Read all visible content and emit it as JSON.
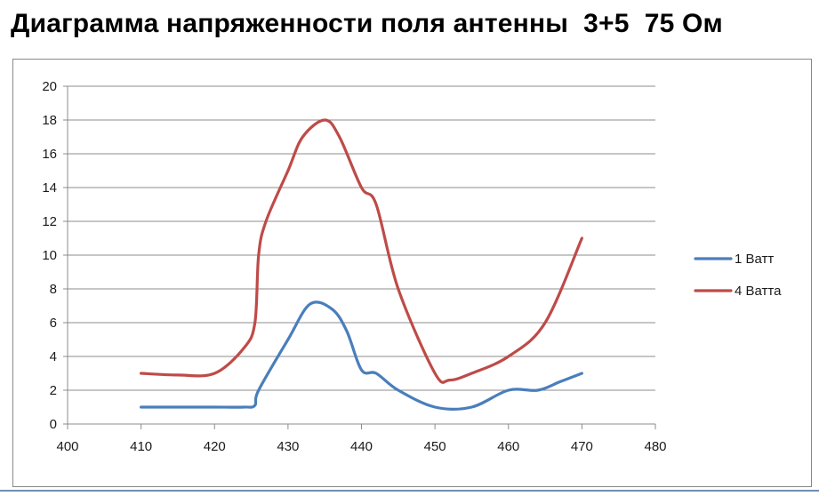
{
  "title": "Диаграмма напряженности поля антенны  3+5  75 Ом",
  "chart_data": {
    "type": "line",
    "title": "Диаграмма напряженности поля антенны  3+5  75 Ом",
    "xlabel": "",
    "ylabel": "",
    "xlim": [
      400,
      480
    ],
    "ylim": [
      0,
      20
    ],
    "x_ticks": [
      400,
      410,
      420,
      430,
      440,
      450,
      460,
      470,
      480
    ],
    "y_ticks": [
      0,
      2,
      4,
      6,
      8,
      10,
      12,
      14,
      16,
      18,
      20
    ],
    "grid": "horizontal",
    "legend_position": "right",
    "smooth": true,
    "series": [
      {
        "name": "1 Ватт",
        "color": "#4a7ebb",
        "x": [
          410,
          420,
          424,
          425.5,
          426,
          430,
          433,
          436,
          438,
          440,
          442,
          445,
          450,
          455,
          460,
          464,
          467,
          470
        ],
        "y": [
          1,
          1,
          1,
          1.1,
          2,
          5,
          7.1,
          6.8,
          5.5,
          3.2,
          3,
          2,
          1,
          1,
          2,
          2,
          2.5,
          3
        ]
      },
      {
        "name": "4 Ватта",
        "color": "#be4b48",
        "x": [
          410,
          415,
          420,
          424,
          425.5,
          426,
          427,
          430,
          432,
          435,
          437,
          440,
          442,
          445,
          450,
          452,
          455,
          460,
          465,
          470
        ],
        "y": [
          3,
          2.9,
          3,
          4.5,
          6,
          10,
          12,
          15,
          17,
          18,
          17,
          14,
          13,
          8,
          3,
          2.6,
          3,
          4,
          6,
          11
        ]
      }
    ]
  }
}
